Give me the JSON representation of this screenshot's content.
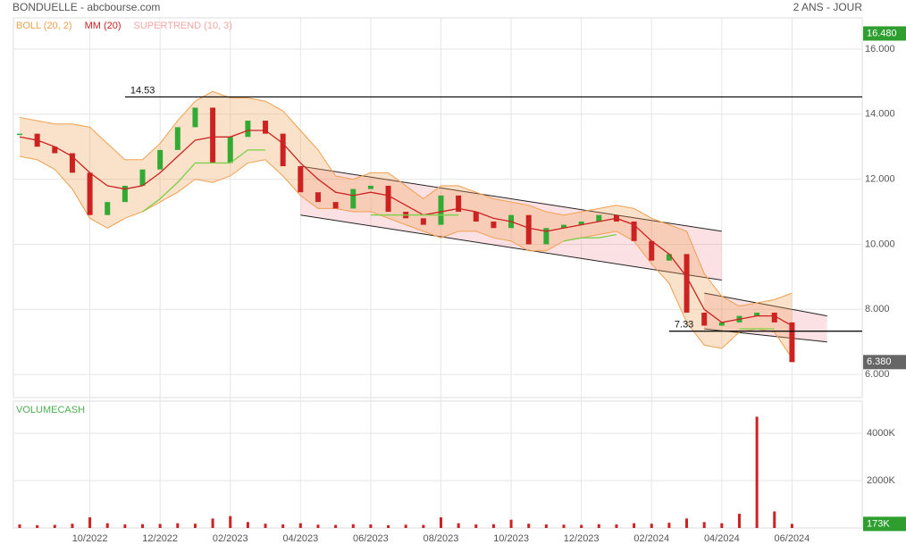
{
  "header": {
    "title": "BONDUELLE - abcbourse.com",
    "period": "2 ANS - JOUR"
  },
  "chart_data": [
    {
      "type": "candlestick",
      "categories": [
        null,
        null,
        null,
        null,
        "10/2022",
        null,
        null,
        null,
        "12/2022",
        null,
        null,
        null,
        "02/2023",
        null,
        null,
        null,
        "04/2023",
        null,
        null,
        null,
        "06/2023",
        null,
        null,
        null,
        "08/2023",
        null,
        null,
        null,
        "10/2023",
        null,
        null,
        null,
        "12/2023",
        null,
        null,
        null,
        "02/2024",
        null,
        null,
        null,
        "04/2024",
        null,
        null,
        null,
        "06/2024",
        null,
        null,
        null,
        null
      ],
      "candles": {
        "up_color": "#33aa33",
        "down_color": "#cc2222",
        "values": [
          13.4,
          13.0,
          12.8,
          12.2,
          10.9,
          11.3,
          11.8,
          12.3,
          12.9,
          13.6,
          14.2,
          12.5,
          13.3,
          13.8,
          13.4,
          12.4,
          11.6,
          11.3,
          11.1,
          11.7,
          11.8,
          11.0,
          10.8,
          10.6,
          11.5,
          11.0,
          10.7,
          10.5,
          10.9,
          10.0,
          10.5,
          10.6,
          10.7,
          10.9,
          10.7,
          10.1,
          9.5,
          9.7,
          7.9,
          7.5,
          7.6,
          7.8,
          7.9,
          7.6,
          6.38,
          null,
          null,
          null,
          null
        ]
      },
      "bollinger": {
        "name": "BOLL (20, 2)",
        "color": "#f0a050",
        "upper": [
          13.9,
          13.8,
          13.7,
          13.7,
          13.6,
          13.1,
          12.6,
          12.6,
          13.1,
          13.8,
          14.4,
          14.7,
          14.5,
          14.5,
          14.4,
          14.1,
          13.5,
          12.9,
          12.1,
          12.0,
          12.2,
          12.2,
          11.8,
          11.4,
          11.8,
          11.8,
          11.6,
          11.4,
          11.3,
          11.2,
          11.0,
          10.9,
          11.0,
          11.1,
          11.2,
          11.1,
          10.8,
          10.6,
          10.4,
          9.1,
          8.4,
          8.1,
          8.2,
          8.3,
          8.5,
          null,
          null,
          null,
          null
        ],
        "lower": [
          12.7,
          12.6,
          12.3,
          11.7,
          10.8,
          10.5,
          10.8,
          11.0,
          11.3,
          11.6,
          12.0,
          11.9,
          12.1,
          12.5,
          12.6,
          12.1,
          11.5,
          11.1,
          11.1,
          11.0,
          11.0,
          10.8,
          10.6,
          10.4,
          10.2,
          10.4,
          10.4,
          10.2,
          10.1,
          9.8,
          9.8,
          10.1,
          10.2,
          10.3,
          10.4,
          10.1,
          9.4,
          8.8,
          7.6,
          6.9,
          6.8,
          7.3,
          7.4,
          7.3,
          6.5,
          null,
          null,
          null,
          null
        ]
      },
      "series": [
        {
          "name": "MM (20)",
          "color": "#cc2222",
          "values": [
            13.3,
            13.2,
            13.0,
            12.7,
            12.2,
            11.8,
            11.7,
            11.8,
            12.2,
            12.7,
            13.2,
            13.3,
            13.3,
            13.5,
            13.5,
            13.1,
            12.5,
            12.0,
            11.6,
            11.5,
            11.6,
            11.5,
            11.2,
            10.9,
            11.0,
            11.1,
            11.0,
            10.8,
            10.7,
            10.5,
            10.4,
            10.5,
            10.6,
            10.7,
            10.8,
            10.6,
            10.1,
            9.7,
            9.0,
            8.0,
            7.6,
            7.7,
            7.8,
            7.8,
            7.5,
            null,
            null,
            null,
            null
          ]
        },
        {
          "name": "SUPERTREND (10, 3)",
          "color": "#f4a6a6",
          "line_color": "#7ccf4a",
          "values": [
            null,
            null,
            null,
            null,
            null,
            null,
            null,
            11.0,
            11.4,
            11.9,
            12.5,
            12.5,
            12.5,
            12.9,
            12.9,
            null,
            null,
            null,
            null,
            null,
            10.9,
            10.9,
            10.9,
            10.9,
            10.9,
            10.9,
            null,
            null,
            null,
            null,
            null,
            10.1,
            10.2,
            10.2,
            10.3,
            null,
            null,
            null,
            null,
            null,
            null,
            7.4,
            7.4,
            7.4,
            null,
            null,
            null,
            null,
            null
          ]
        }
      ],
      "annotations": [
        {
          "label": "14.53",
          "value": 14.53,
          "start": 6
        },
        {
          "label": "7.33",
          "value": 7.33,
          "start": 37
        }
      ],
      "channels": [
        {
          "start": 16,
          "end": 40,
          "upper": [
            12.4,
            10.4
          ],
          "lower": [
            10.9,
            8.9
          ]
        },
        {
          "start": 39,
          "end": 46,
          "upper": [
            8.5,
            7.8
          ],
          "lower": [
            7.4,
            7.0
          ]
        }
      ],
      "markers": [
        {
          "value": 16.48,
          "label": "16.480",
          "color": "#2e9e2e"
        },
        {
          "value": 6.38,
          "label": "6.380",
          "color": "#666666"
        }
      ],
      "ylim": [
        5.29,
        16.96
      ],
      "yticks": [
        {
          "value": 6,
          "label": "6.000"
        },
        {
          "value": 8,
          "label": "8.000"
        },
        {
          "value": 10,
          "label": "10.000"
        },
        {
          "value": 12,
          "label": "12.000"
        },
        {
          "value": 14,
          "label": "14.000"
        },
        {
          "value": 16,
          "label": "16.000"
        }
      ],
      "grid": true
    },
    {
      "type": "bar",
      "title": "VOLUMECASH",
      "color": "#cc2222",
      "values": [
        150,
        120,
        130,
        180,
        450,
        200,
        150,
        160,
        170,
        200,
        180,
        400,
        500,
        250,
        180,
        150,
        200,
        140,
        130,
        160,
        150,
        120,
        140,
        130,
        450,
        200,
        150,
        160,
        350,
        180,
        150,
        140,
        130,
        160,
        150,
        200,
        180,
        220,
        400,
        250,
        200,
        600,
        4700,
        700,
        173
      ],
      "ylim": [
        0,
        5320
      ],
      "yticks": [
        {
          "value": 2000,
          "label": "2000K"
        },
        {
          "value": 4000,
          "label": "4000K"
        }
      ],
      "marker": {
        "value": 173,
        "label": "173K",
        "color": "#2e9e2e"
      },
      "grid": true
    }
  ]
}
